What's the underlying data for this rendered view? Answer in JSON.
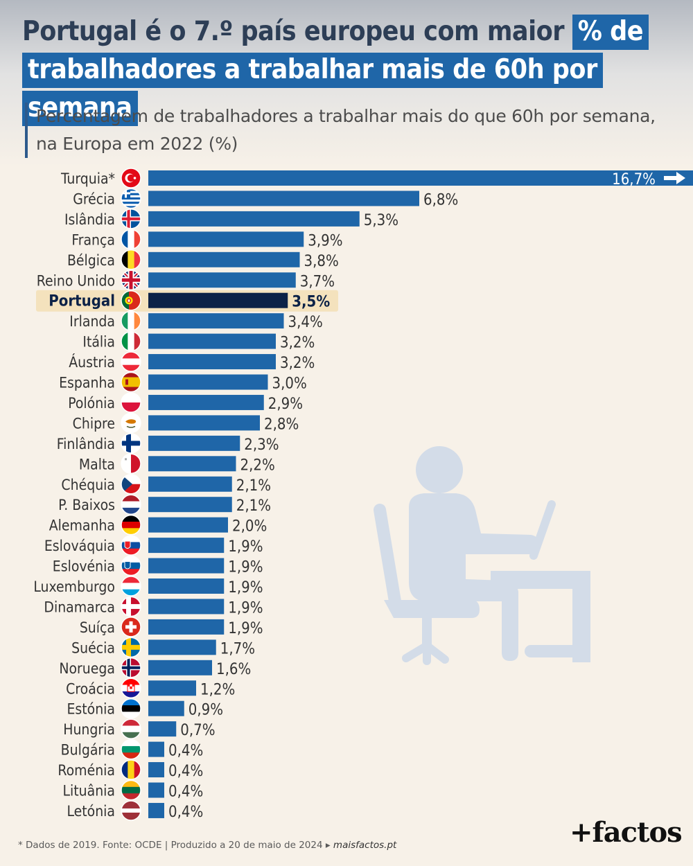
{
  "title": {
    "line1_plain": "Portugal é o 7.º país europeu com maior ",
    "line1_highlight": "% de",
    "line2_highlight": "trabalhadores a trabalhar mais de 60h por semana"
  },
  "subtitle": "Percentagem de trabalhadores a trabalhar mais do que 60h por semana, na Europa em 2022 (%)",
  "footer": {
    "note": "* Dados de 2019. Fonte: OCDE | Produzido a 20 de maio de 2024 ▸ ",
    "site": "maisfactos.pt",
    "logo": "+factos"
  },
  "colors": {
    "bar": "#1f66a8",
    "highlight_bar": "#0c2247",
    "highlight_band": "#f4e2bd",
    "illustration": "#d3dce8"
  },
  "chart_data": {
    "type": "bar",
    "orientation": "horizontal",
    "categories": [
      "Turquia*",
      "Grécia",
      "Islândia",
      "França",
      "Bélgica",
      "Reino Unido",
      "Portugal",
      "Irlanda",
      "Itália",
      "Áustria",
      "Espanha",
      "Polónia",
      "Chipre",
      "Finlândia",
      "Malta",
      "Chéquia",
      "P. Baixos",
      "Alemanha",
      "Eslováquia",
      "Eslovénia",
      "Luxemburgo",
      "Dinamarca",
      "Suíça",
      "Suécia",
      "Noruega",
      "Croácia",
      "Estónia",
      "Hungria",
      "Bulgária",
      "Roménia",
      "Lituânia",
      "Letónia"
    ],
    "values": [
      16.7,
      6.8,
      5.3,
      3.9,
      3.8,
      3.7,
      3.5,
      3.4,
      3.2,
      3.2,
      3.0,
      2.9,
      2.8,
      2.3,
      2.2,
      2.1,
      2.1,
      2.0,
      1.9,
      1.9,
      1.9,
      1.9,
      1.9,
      1.7,
      1.6,
      1.2,
      0.9,
      0.7,
      0.4,
      0.4,
      0.4,
      0.4
    ],
    "value_labels": [
      "16,7%",
      "6,8%",
      "5,3%",
      "3,9%",
      "3,8%",
      "3,7%",
      "3,5%",
      "3,4%",
      "3,2%",
      "3,2%",
      "3,0%",
      "2,9%",
      "2,8%",
      "2,3%",
      "2,2%",
      "2,1%",
      "2,1%",
      "2,0%",
      "1,9%",
      "1,9%",
      "1,9%",
      "1,9%",
      "1,9%",
      "1,7%",
      "1,6%",
      "1,2%",
      "0,9%",
      "0,7%",
      "0,4%",
      "0,4%",
      "0,4%",
      "0,4%"
    ],
    "highlight": "Portugal",
    "truncated": "Turquia*",
    "xlim": [
      0,
      7
    ],
    "unit": "%",
    "grid": false,
    "legend": "none"
  },
  "flags": [
    "turkey-flag-icon",
    "greece-flag-icon",
    "iceland-flag-icon",
    "france-flag-icon",
    "belgium-flag-icon",
    "uk-flag-icon",
    "portugal-flag-icon",
    "ireland-flag-icon",
    "italy-flag-icon",
    "austria-flag-icon",
    "spain-flag-icon",
    "poland-flag-icon",
    "cyprus-flag-icon",
    "finland-flag-icon",
    "malta-flag-icon",
    "czechia-flag-icon",
    "netherlands-flag-icon",
    "germany-flag-icon",
    "slovakia-flag-icon",
    "slovenia-flag-icon",
    "luxembourg-flag-icon",
    "denmark-flag-icon",
    "switzerland-flag-icon",
    "sweden-flag-icon",
    "norway-flag-icon",
    "croatia-flag-icon",
    "estonia-flag-icon",
    "hungary-flag-icon",
    "bulgaria-flag-icon",
    "romania-flag-icon",
    "lithuania-flag-icon",
    "latvia-flag-icon"
  ],
  "illustration_icon": "person-at-desk-icon"
}
